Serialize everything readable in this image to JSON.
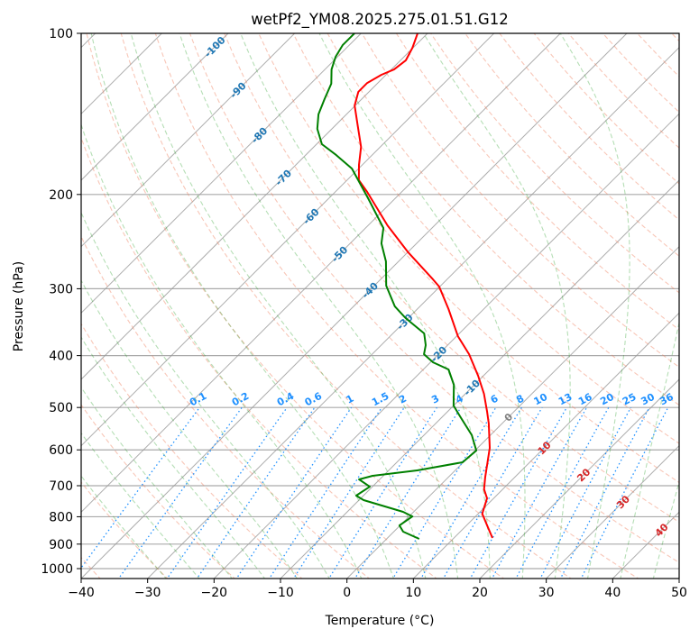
{
  "chart_data": {
    "type": "line",
    "title": "wetPf2_YM08.2025.275.01.51.G12",
    "xlabel": "Temperature (°C)",
    "ylabel": "Pressure (hPa)",
    "xlim": [
      -40,
      50
    ],
    "ylim": [
      1043,
      100
    ],
    "yscale": "log",
    "skew_deg": 45,
    "grid": true,
    "x_ticks": [
      "−40",
      "−30",
      "−20",
      "−10",
      "0",
      "10",
      "20",
      "30",
      "40",
      "50"
    ],
    "x_tick_values": [
      -40,
      -30,
      -20,
      -10,
      0,
      10,
      20,
      30,
      40,
      50
    ],
    "y_ticks": [
      "100",
      "200",
      "300",
      "400",
      "500",
      "600",
      "700",
      "800",
      "900",
      "1000"
    ],
    "y_tick_values": [
      100,
      200,
      300,
      400,
      500,
      600,
      700,
      800,
      900,
      1000
    ],
    "isotherm_labels": [
      {
        "text": "-100",
        "value": -100,
        "color": "#1f77b4"
      },
      {
        "text": "-90",
        "value": -90,
        "color": "#1f77b4"
      },
      {
        "text": "-80",
        "value": -80,
        "color": "#1f77b4"
      },
      {
        "text": "-70",
        "value": -70,
        "color": "#1f77b4"
      },
      {
        "text": "-60",
        "value": -60,
        "color": "#1f77b4"
      },
      {
        "text": "-50",
        "value": -50,
        "color": "#1f77b4"
      },
      {
        "text": "-40",
        "value": -40,
        "color": "#1f77b4"
      },
      {
        "text": "-30",
        "value": -30,
        "color": "#1f77b4"
      },
      {
        "text": "-20",
        "value": -20,
        "color": "#1f77b4"
      },
      {
        "text": "-10",
        "value": -10,
        "color": "#1f77b4"
      },
      {
        "text": "0",
        "value": 0,
        "color": "#808080"
      },
      {
        "text": "10",
        "value": 10,
        "color": "#d62728"
      },
      {
        "text": "20",
        "value": 20,
        "color": "#d62728"
      },
      {
        "text": "30",
        "value": 30,
        "color": "#d62728"
      },
      {
        "text": "40",
        "value": 40,
        "color": "#d62728"
      }
    ],
    "mixing_ratio_labels": [
      "0.1",
      "0.2",
      "0.4",
      "0.6",
      "1",
      "1.5",
      "2",
      "3",
      "4",
      "6",
      "8",
      "10",
      "13",
      "16",
      "20",
      "25",
      "30",
      "36"
    ],
    "mixing_ratio_values_gkg": [
      0.1,
      0.2,
      0.4,
      0.6,
      1,
      1.5,
      2,
      3,
      4,
      6,
      8,
      10,
      13,
      16,
      20,
      25,
      30,
      36
    ],
    "series": [
      {
        "name": "Temperature",
        "color": "#ff0000",
        "T": [
          -71.5,
          -70.1,
          -69.2,
          -69.6,
          -70.7,
          -71.6,
          -71.6,
          -70.1,
          -66.5,
          -62.9,
          -60.5,
          -58.2,
          -55.2,
          -47.1,
          -39.9,
          -32.1,
          -30.1,
          -25.3,
          -19.8,
          -15.4,
          -10.8,
          -7.2,
          -4.0,
          -2.0,
          1.8,
          5.6,
          7.2,
          9.0,
          10.6,
          13.1,
          15.8
        ],
        "p": [
          100,
          106.4,
          112.3,
          116.8,
          119.5,
          123.8,
          128.6,
          136.4,
          149.1,
          163.0,
          176.1,
          188.1,
          197.8,
          228.4,
          256.6,
          288.2,
          297.2,
          327.5,
          368.0,
          397.6,
          436.3,
          471.4,
          509.6,
          535.8,
          594.8,
          676.1,
          710.9,
          738.9,
          789.6,
          830.4,
          876.6
        ]
      },
      {
        "name": "Dewpoint",
        "color": "#008000",
        "T": [
          -81.0,
          -81.0,
          -80.3,
          -79.0,
          -76.9,
          -75.6,
          -74.2,
          -72.2,
          -69.2,
          -65.4,
          -61.0,
          -58.3,
          -54.1,
          -47.3,
          -45.3,
          -41.9,
          -38.2,
          -33.8,
          -30.4,
          -25.3,
          -23.3,
          -22.2,
          -19.6,
          -16.2,
          -13.1,
          -10.0,
          -7.4,
          -2.8,
          0.2,
          -0.1,
          -5.7,
          -11.6,
          -13.1,
          -10.4,
          -11.1,
          -9.3,
          -1.6,
          0.5,
          -0.1,
          1.4,
          4.9
        ],
        "p": [
          100,
          105.2,
          110.6,
          116.8,
          124.2,
          132.7,
          141.7,
          150.8,
          161.1,
          168.8,
          178.9,
          188.1,
          203.3,
          231.1,
          246.8,
          266.7,
          296.1,
          323.6,
          340.4,
          363.6,
          382.4,
          397.6,
          411.7,
          424.6,
          453.5,
          495.9,
          519.5,
          563.3,
          601.8,
          632.9,
          655.5,
          670.9,
          681.4,
          702.9,
          730.4,
          744.7,
          783.4,
          798.9,
          830.4,
          853.1,
          879.8
        ]
      }
    ]
  }
}
